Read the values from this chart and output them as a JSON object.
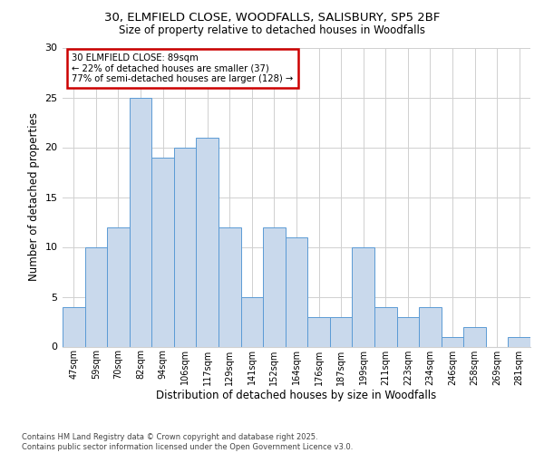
{
  "title1": "30, ELMFIELD CLOSE, WOODFALLS, SALISBURY, SP5 2BF",
  "title2": "Size of property relative to detached houses in Woodfalls",
  "xlabel": "Distribution of detached houses by size in Woodfalls",
  "ylabel": "Number of detached properties",
  "footer1": "Contains HM Land Registry data © Crown copyright and database right 2025.",
  "footer2": "Contains public sector information licensed under the Open Government Licence v3.0.",
  "annotation_line1": "30 ELMFIELD CLOSE: 89sqm",
  "annotation_line2": "← 22% of detached houses are smaller (37)",
  "annotation_line3": "77% of semi-detached houses are larger (128) →",
  "bin_labels": [
    "47sqm",
    "59sqm",
    "70sqm",
    "82sqm",
    "94sqm",
    "106sqm",
    "117sqm",
    "129sqm",
    "141sqm",
    "152sqm",
    "164sqm",
    "176sqm",
    "187sqm",
    "199sqm",
    "211sqm",
    "223sqm",
    "234sqm",
    "246sqm",
    "258sqm",
    "269sqm",
    "281sqm"
  ],
  "bin_values": [
    4,
    10,
    12,
    25,
    19,
    20,
    21,
    12,
    5,
    12,
    11,
    3,
    3,
    10,
    4,
    3,
    4,
    1,
    2,
    0,
    1
  ],
  "property_bin_index": 3,
  "bar_color": "#c9d9ec",
  "bar_edge_color": "#5b9bd5",
  "annotation_box_color": "#ffffff",
  "annotation_box_edge": "#cc0000",
  "background_color": "#ffffff",
  "grid_color": "#d0d0d0",
  "ylim": [
    0,
    30
  ],
  "yticks": [
    0,
    5,
    10,
    15,
    20,
    25,
    30
  ]
}
